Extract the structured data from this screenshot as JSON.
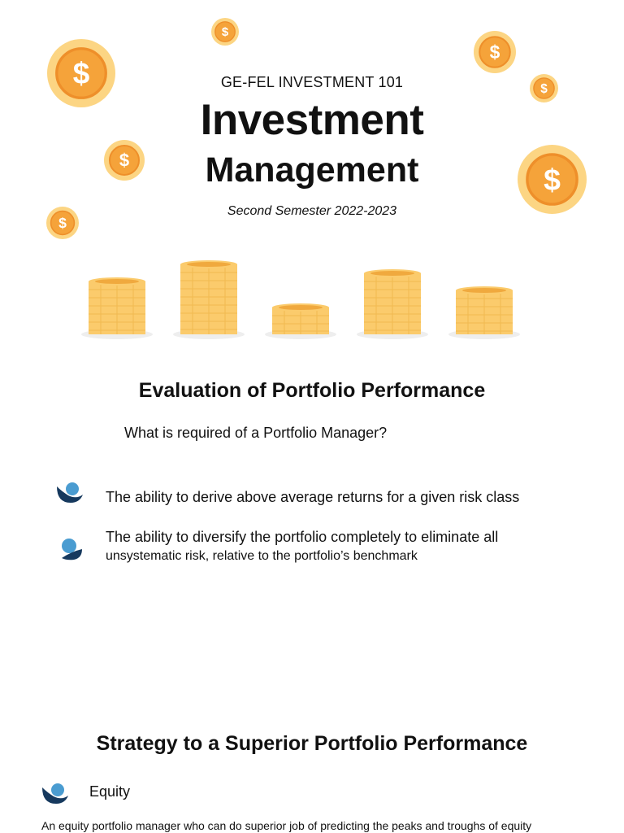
{
  "header": {
    "course_code": "GE-FEL INVESTMENT 101",
    "title": "Investment",
    "subtitle": "Management",
    "semester": "Second Semester 2022-2023"
  },
  "decor": {
    "coin_icon": "dollar-coin-icon",
    "stack_icon": "coin-stack-icon",
    "coin_symbol": "$",
    "colors": {
      "coin_outer": "#FCD583",
      "coin_inner": "#F5A33A",
      "coin_inner_ring": "#EE8F2A",
      "stack_gold": "#FBCB6C",
      "stack_dark": "#F0A93E",
      "bullet_dark": "#16395E",
      "bullet_light": "#4A9CD1"
    }
  },
  "section1": {
    "heading": "Evaluation of Portfolio Performance",
    "question": "What is required of a Portfolio Manager?",
    "bullets": [
      {
        "text": "The ability to derive above average returns for a given risk class"
      },
      {
        "line1": "The ability to diversify the portfolio completely to eliminate all",
        "line2": "unsystematic risk, relative to the portfolio’s benchmark"
      }
    ]
  },
  "section2": {
    "heading": "Strategy to a Superior Portfolio Performance",
    "item_label": "Equity",
    "paragraph": "An equity portfolio manager who can do superior job of predicting the peaks and troughs of equity"
  }
}
